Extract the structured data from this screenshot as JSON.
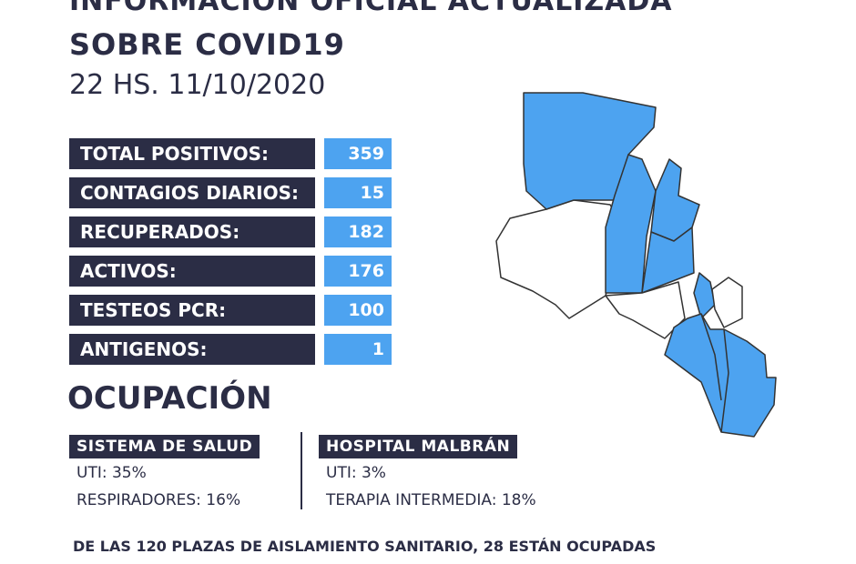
{
  "header": {
    "title_line1": "INFORMACIÓN OFICIAL ACTUALIZADA",
    "title_line2": "SOBRE COVID19",
    "date": "22 HS. 11/10/2020"
  },
  "stats": {
    "rows": [
      {
        "label": "TOTAL POSITIVOS:",
        "value": 359
      },
      {
        "label": "CONTAGIOS DIARIOS:",
        "value": 15
      },
      {
        "label": "RECUPERADOS:",
        "value": 182
      },
      {
        "label": "ACTIVOS:",
        "value": 176
      },
      {
        "label": "TESTEOS PCR:",
        "value": 100
      },
      {
        "label": "ANTIGENOS:",
        "value": 1
      }
    ]
  },
  "occupancy": {
    "title": "OCUPACIÓN",
    "groups": [
      {
        "name": "SISTEMA DE SALUD",
        "items": [
          "UTI: 35%",
          "RESPIRADORES: 16%"
        ]
      },
      {
        "name": "HOSPITAL MALBRÁN",
        "items": [
          "UTI: 3%",
          "TERAPIA INTERMEDIA: 18%"
        ]
      }
    ]
  },
  "footer": {
    "text": "DE LAS 120 PLAZAS DE AISLAMIENTO SANITARIO, 28 ESTÁN OCUPADAS"
  }
}
